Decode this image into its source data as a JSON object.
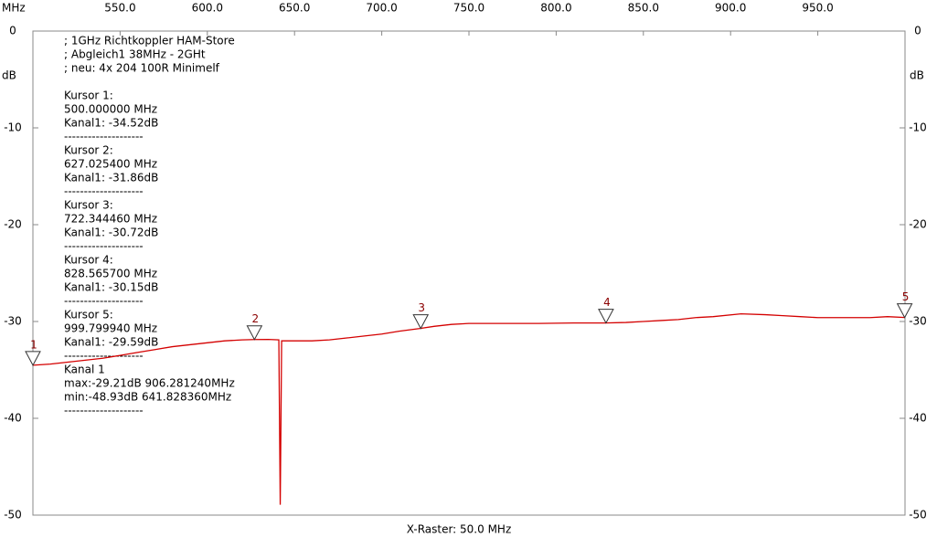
{
  "chart_data": {
    "type": "line",
    "x_unit": "MHz",
    "y_unit": "dB",
    "x_label": "X-Raster: 50.0 MHz",
    "xlim": [
      500,
      1000
    ],
    "ylim": [
      -50,
      0
    ],
    "xticks": [
      {
        "value": 550,
        "label": "550.0"
      },
      {
        "value": 600,
        "label": "600.0"
      },
      {
        "value": 650,
        "label": "650.0"
      },
      {
        "value": 700,
        "label": "700.0"
      },
      {
        "value": 750,
        "label": "750.0"
      },
      {
        "value": 800,
        "label": "800.0"
      },
      {
        "value": 850,
        "label": "850.0"
      },
      {
        "value": 900,
        "label": "900.0"
      },
      {
        "value": 950,
        "label": "950.0"
      }
    ],
    "yticks": [
      0,
      -10,
      -20,
      -30,
      -40,
      -50
    ],
    "series": [
      {
        "name": "Kanal 1",
        "color": "#d40000",
        "x": [
          500,
          510,
          520,
          530,
          540,
          550,
          560,
          570,
          580,
          590,
          600,
          610,
          620,
          627,
          635,
          641,
          641.8,
          642.6,
          650,
          660,
          670,
          680,
          690,
          700,
          710,
          722,
          730,
          740,
          750,
          770,
          790,
          810,
          828,
          840,
          850,
          860,
          870,
          880,
          890,
          906,
          920,
          930,
          940,
          950,
          960,
          970,
          980,
          990,
          1000
        ],
        "values": [
          -34.52,
          -34.4,
          -34.2,
          -34.0,
          -33.8,
          -33.5,
          -33.2,
          -32.9,
          -32.6,
          -32.4,
          -32.2,
          -32.0,
          -31.9,
          -31.86,
          -31.85,
          -31.9,
          -48.93,
          -32.0,
          -32.0,
          -32.0,
          -31.9,
          -31.7,
          -31.5,
          -31.3,
          -31.0,
          -30.72,
          -30.5,
          -30.3,
          -30.2,
          -30.2,
          -30.2,
          -30.15,
          -30.15,
          -30.1,
          -30.0,
          -29.9,
          -29.8,
          -29.6,
          -29.5,
          -29.21,
          -29.3,
          -29.4,
          -29.5,
          -29.6,
          -29.6,
          -29.6,
          -29.6,
          -29.5,
          -29.59
        ]
      }
    ],
    "cursors": [
      {
        "label": "1",
        "x": 500.0,
        "y": -34.52
      },
      {
        "label": "2",
        "x": 627.0254,
        "y": -31.86
      },
      {
        "label": "3",
        "x": 722.34446,
        "y": -30.72
      },
      {
        "label": "4",
        "x": 828.5657,
        "y": -30.15
      },
      {
        "label": "5",
        "x": 999.79994,
        "y": -29.59
      }
    ],
    "notes": [
      [
        "; 1GHz Richtkoppler HAM-Store",
        "; Abgleich1 38MHz - 2GHt",
        "; neu: 4x 204 100R Minimelf"
      ],
      [
        "Kursor 1:",
        "500.000000 MHz",
        "Kanal1: -34.52dB",
        "--------------------"
      ],
      [
        "Kursor 2:",
        "627.025400 MHz",
        "Kanal1: -31.86dB",
        "--------------------"
      ],
      [
        "Kursor 3:",
        "722.344460 MHz",
        "Kanal1: -30.72dB",
        "--------------------"
      ],
      [
        "Kursor 4:",
        "828.565700 MHz",
        "Kanal1: -30.15dB",
        "--------------------"
      ],
      [
        "Kursor 5:",
        "999.799940 MHz",
        "Kanal1: -29.59dB",
        "--------------------"
      ],
      [
        "Kanal 1",
        "max:-29.21dB 906.281240MHz",
        "min:-48.93dB 641.828360MHz",
        "--------------------"
      ]
    ]
  }
}
